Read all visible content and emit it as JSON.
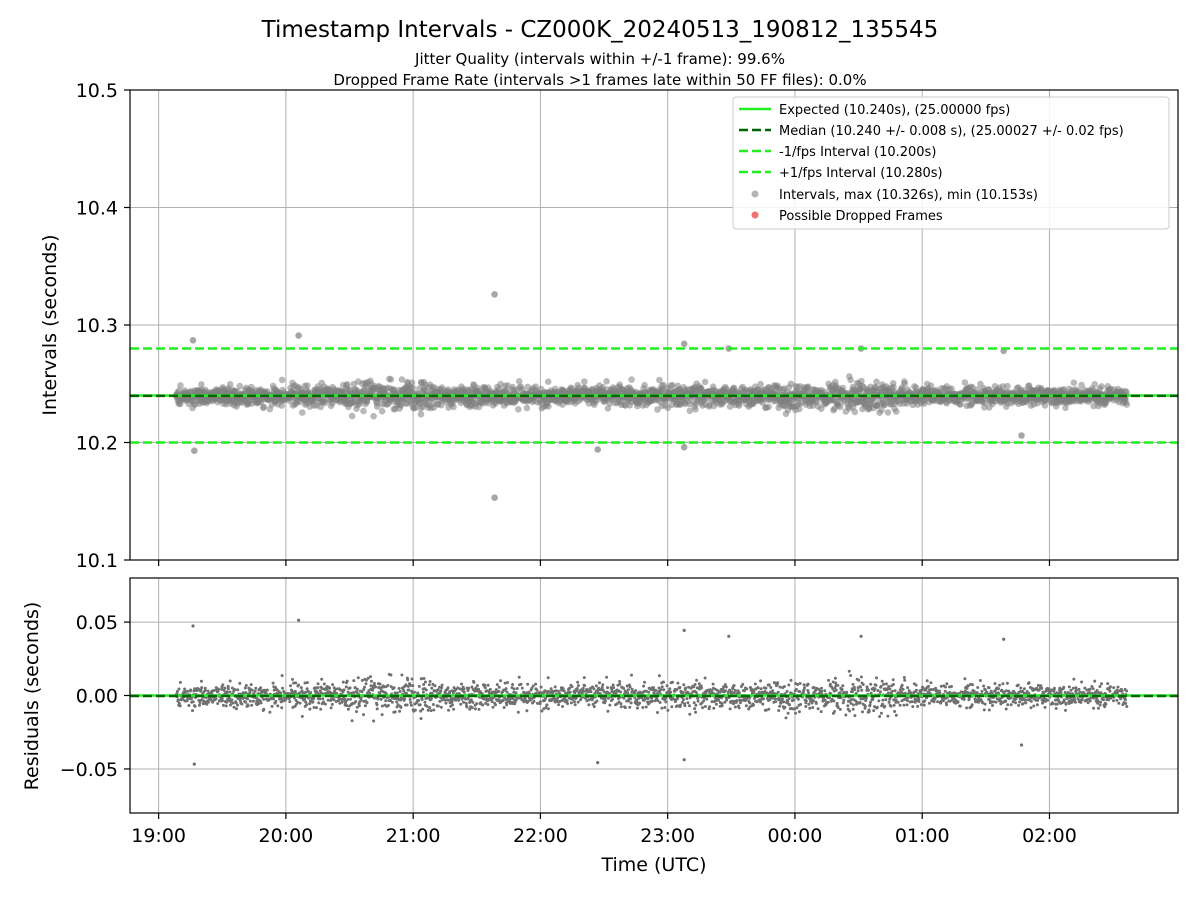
{
  "chart_data": [
    {
      "type": "scatter",
      "title": "Timestamp Intervals - CZ000K_20240513_190812_135545",
      "subtitle_lines": [
        "Jitter Quality (intervals within +/-1 frame): 99.6%",
        "Dropped Frame Rate (intervals >1 frames late within 50 FF files): 0.0%"
      ],
      "xlabel": "",
      "ylabel": "Intervals (seconds)",
      "ylim": [
        10.1,
        10.5
      ],
      "yticks": [
        10.1,
        10.2,
        10.3,
        10.4,
        10.5
      ],
      "ytick_labels": [
        "10.1",
        "10.2",
        "10.3",
        "10.4",
        "10.5"
      ],
      "x_units": "hours after 18:00 UTC",
      "xlim": [
        0.775,
        9.01
      ],
      "xticks": [
        1,
        2,
        3,
        4,
        5,
        6,
        7,
        8
      ],
      "grid": true,
      "legend_position": "top-right",
      "reference_lines": [
        {
          "label": "Expected (10.240s), (25.00000 fps)",
          "value": 10.24,
          "color": "#22ee22",
          "style": "solid"
        },
        {
          "label": "Median (10.240 +/- 0.008 s), (25.00027 +/- 0.02 fps)",
          "value": 10.2397,
          "color": "#006400",
          "style": "dashed"
        },
        {
          "label": "-1/fps Interval (10.200s)",
          "value": 10.2,
          "color": "#22ee22",
          "style": "dashed"
        },
        {
          "label": "+1/fps Interval (10.280s)",
          "value": 10.28,
          "color": "#22ee22",
          "style": "dashed"
        }
      ],
      "series": [
        {
          "name": "Intervals, max (10.326s), min (10.153s)",
          "color": "#808080",
          "summary": {
            "max": 10.326,
            "min": 10.153,
            "median": 10.24,
            "std": 0.008,
            "x_start": 1.136,
            "x_end": 8.61,
            "count": 2600
          }
        },
        {
          "name": "Possible Dropped Frames",
          "color": "#f06060",
          "values": []
        }
      ],
      "outliers": [
        {
          "x": 1.27,
          "y": 10.287
        },
        {
          "x": 1.28,
          "y": 10.193
        },
        {
          "x": 2.1,
          "y": 10.291
        },
        {
          "x": 3.64,
          "y": 10.326
        },
        {
          "x": 3.64,
          "y": 10.153
        },
        {
          "x": 4.45,
          "y": 10.194
        },
        {
          "x": 5.13,
          "y": 10.284
        },
        {
          "x": 5.13,
          "y": 10.196
        },
        {
          "x": 5.48,
          "y": 10.28
        },
        {
          "x": 6.52,
          "y": 10.28
        },
        {
          "x": 7.64,
          "y": 10.278
        },
        {
          "x": 7.78,
          "y": 10.206
        }
      ]
    },
    {
      "type": "scatter",
      "xlabel": "Time (UTC)",
      "ylabel": "Residuals (seconds)",
      "ylim": [
        -0.08,
        0.08
      ],
      "yticks": [
        -0.05,
        0.0,
        0.05
      ],
      "ytick_labels": [
        "−0.05",
        "0.00",
        "0.05"
      ],
      "x_units": "hours after 18:00 UTC",
      "xlim": [
        0.775,
        9.01
      ],
      "xticks": [
        1,
        2,
        3,
        4,
        5,
        6,
        7,
        8
      ],
      "xtick_labels": [
        "19:00",
        "20:00",
        "21:00",
        "22:00",
        "23:00",
        "00:00",
        "01:00",
        "02:00"
      ],
      "grid": true,
      "reference_lines": [
        {
          "value": 0.0,
          "color": "#22ee22",
          "style": "solid"
        },
        {
          "value": -0.0003,
          "color": "#006400",
          "style": "dashed"
        }
      ],
      "series": [
        {
          "color": "#707070",
          "summary": {
            "max": 0.052,
            "min": -0.047,
            "std": 0.008,
            "x_start": 1.136,
            "x_end": 8.61,
            "count": 2600
          }
        }
      ]
    }
  ]
}
